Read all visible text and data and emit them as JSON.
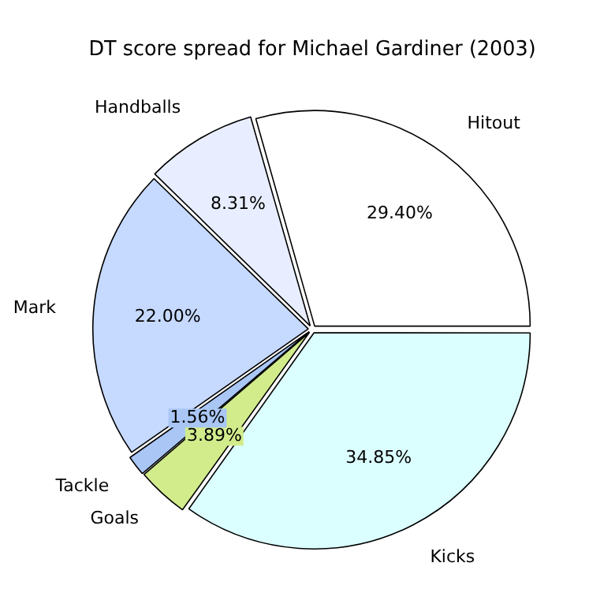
{
  "chart_data": {
    "type": "pie",
    "title": "DT score spread for Michael Gardiner (2003)",
    "categories": [
      "Hitout",
      "Handballs",
      "Mark",
      "Tackle",
      "Goals",
      "Kicks"
    ],
    "values": [
      29.4,
      8.31,
      22.0,
      1.56,
      3.89,
      34.85
    ],
    "value_labels": [
      "29.40%",
      "8.31%",
      "22.00%",
      "1.56%",
      "3.89%",
      "34.85%"
    ],
    "colors": [
      "#ffffff",
      "#e8eeff",
      "#c6d9ff",
      "#a9c6f5",
      "#d2ec8c",
      "#dbffff"
    ],
    "legend": false
  }
}
